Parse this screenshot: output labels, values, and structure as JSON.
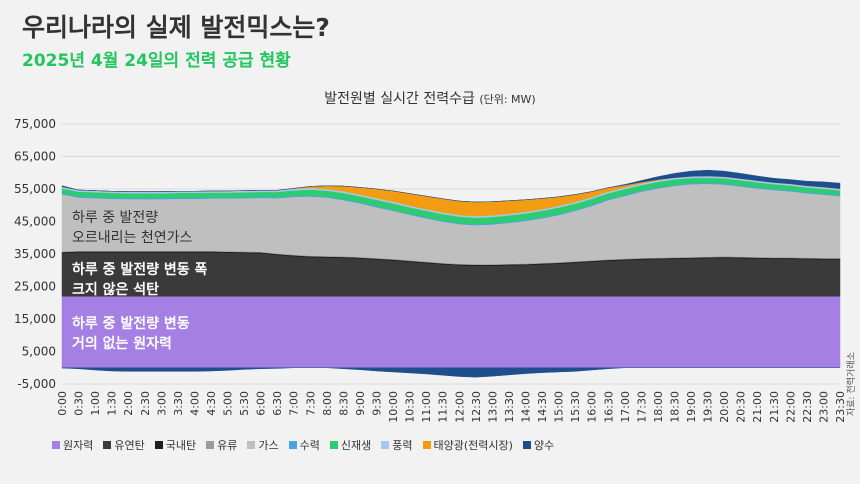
{
  "header": {
    "title": "우리나라의 실제 발전믹스는?",
    "subtitle": "2025년 4월 24일의 전력 공급 현황"
  },
  "chart_title": "발전원별 실시간 전력수급",
  "chart_unit": "(단위: MW)",
  "source": "자료: 전력거래소",
  "annotations": [
    {
      "lines": [
        "하루 중 발전량",
        "오르내리는 천연가스"
      ]
    },
    {
      "lines": [
        "하루 중 발전량 변동 폭",
        "크지 않은 석탄"
      ]
    },
    {
      "lines": [
        "하루 중 발전량 변동",
        "거의 없는 원자력"
      ]
    }
  ],
  "chart_data": {
    "type": "area",
    "stacked": true,
    "ylim": [
      -5000,
      75000
    ],
    "yticks": [
      -5000,
      5000,
      15000,
      25000,
      35000,
      45000,
      55000,
      65000,
      75000
    ],
    "ytick_labels": [
      "-5,000",
      "5,000",
      "15,000",
      "25,000",
      "35,000",
      "45,000",
      "55,000",
      "65,000",
      "75,000"
    ],
    "x": [
      "0:00",
      "0:30",
      "1:00",
      "1:30",
      "2:00",
      "2:30",
      "3:00",
      "3:30",
      "4:00",
      "4:30",
      "5:00",
      "5:30",
      "6:00",
      "6:30",
      "7:00",
      "7:30",
      "8:00",
      "8:30",
      "9:00",
      "9:30",
      "10:00",
      "10:30",
      "11:00",
      "11:30",
      "12:00",
      "12:30",
      "13:00",
      "13:30",
      "14:00",
      "14:30",
      "15:00",
      "15:30",
      "16:00",
      "16:30",
      "17:00",
      "17:30",
      "18:00",
      "18:30",
      "19:00",
      "19:30",
      "20:00",
      "20:30",
      "21:00",
      "21:30",
      "22:00",
      "22:30",
      "23:00",
      "23:30"
    ],
    "grid": true,
    "legend_position": "bottom",
    "series": [
      {
        "name": "원자력",
        "color": "#a57fe3",
        "values": [
          22000,
          22000,
          22000,
          22000,
          22000,
          22000,
          22000,
          22000,
          22000,
          22000,
          22000,
          22000,
          22000,
          22000,
          22000,
          22000,
          22000,
          22000,
          22000,
          22000,
          22000,
          22000,
          22000,
          22000,
          22000,
          22000,
          22000,
          22000,
          22000,
          22000,
          22000,
          22000,
          22000,
          22000,
          22000,
          22000,
          22000,
          22000,
          22000,
          22000,
          22000,
          22000,
          22000,
          22000,
          22000,
          22000,
          22000,
          22000
        ]
      },
      {
        "name": "유연탄",
        "color": "#3a3a3a",
        "values": [
          13300,
          13500,
          13500,
          13500,
          13500,
          13500,
          13500,
          13500,
          13500,
          13500,
          13400,
          13300,
          13200,
          12700,
          12300,
          12000,
          11900,
          11800,
          11600,
          11300,
          11000,
          10600,
          10200,
          9800,
          9500,
          9400,
          9400,
          9500,
          9600,
          9800,
          10000,
          10300,
          10600,
          10900,
          11100,
          11300,
          11400,
          11500,
          11600,
          11700,
          11800,
          11700,
          11600,
          11500,
          11500,
          11400,
          11300,
          11300
        ]
      },
      {
        "name": "국내탄",
        "color": "#1f1f1f",
        "values": [
          300,
          300,
          300,
          300,
          300,
          300,
          300,
          300,
          300,
          300,
          300,
          300,
          300,
          300,
          300,
          300,
          300,
          300,
          300,
          300,
          300,
          300,
          300,
          300,
          300,
          300,
          300,
          300,
          300,
          300,
          300,
          300,
          300,
          300,
          300,
          300,
          300,
          300,
          300,
          300,
          300,
          300,
          300,
          300,
          300,
          300,
          300,
          300
        ]
      },
      {
        "name": "유류",
        "color": "#9b9b9b",
        "values": [
          200,
          200,
          200,
          200,
          200,
          200,
          200,
          200,
          200,
          200,
          200,
          200,
          200,
          200,
          200,
          200,
          200,
          200,
          200,
          200,
          200,
          200,
          200,
          200,
          200,
          200,
          200,
          200,
          200,
          200,
          200,
          200,
          200,
          200,
          200,
          200,
          200,
          200,
          200,
          200,
          200,
          200,
          200,
          200,
          200,
          200,
          200,
          200
        ]
      },
      {
        "name": "가스",
        "color": "#bfbfbf",
        "values": [
          17600,
          16400,
          16200,
          16000,
          15900,
          15900,
          15900,
          16000,
          16000,
          16100,
          16200,
          16400,
          16600,
          17000,
          17800,
          18200,
          18000,
          17300,
          16500,
          15600,
          14800,
          14000,
          13300,
          12700,
          12200,
          12000,
          12200,
          12600,
          13100,
          13700,
          14500,
          15500,
          16700,
          18200,
          19300,
          20400,
          21300,
          22000,
          22400,
          22400,
          22100,
          21600,
          21100,
          20700,
          20300,
          19800,
          19500,
          19000
        ]
      },
      {
        "name": "수력",
        "color": "#4aa3df",
        "values": [
          300,
          300,
          300,
          300,
          300,
          300,
          300,
          300,
          300,
          300,
          300,
          300,
          300,
          300,
          300,
          300,
          300,
          300,
          300,
          300,
          300,
          300,
          300,
          300,
          300,
          300,
          300,
          300,
          300,
          300,
          300,
          300,
          300,
          300,
          300,
          300,
          300,
          300,
          300,
          300,
          300,
          300,
          300,
          300,
          300,
          300,
          300,
          300
        ]
      },
      {
        "name": "신재생",
        "color": "#2ecc71",
        "values": [
          1500,
          1500,
          1500,
          1500,
          1500,
          1500,
          1500,
          1500,
          1500,
          1500,
          1500,
          1500,
          1500,
          1600,
          1700,
          1800,
          1800,
          1900,
          1900,
          2000,
          2000,
          2000,
          2000,
          2000,
          2000,
          2000,
          2000,
          2000,
          2000,
          2000,
          2000,
          1900,
          1900,
          1800,
          1800,
          1700,
          1700,
          1700,
          1600,
          1600,
          1600,
          1600,
          1600,
          1500,
          1500,
          1500,
          1500,
          1500
        ]
      },
      {
        "name": "풍력",
        "color": "#a7c7ee",
        "values": [
          500,
          500,
          500,
          500,
          500,
          500,
          500,
          500,
          500,
          500,
          500,
          500,
          500,
          500,
          500,
          500,
          500,
          500,
          500,
          500,
          500,
          500,
          500,
          500,
          500,
          500,
          500,
          500,
          500,
          500,
          500,
          500,
          500,
          500,
          500,
          500,
          500,
          500,
          500,
          500,
          500,
          500,
          500,
          500,
          500,
          500,
          500,
          500
        ]
      },
      {
        "name": "태양광(전력시장)",
        "color": "#f39c12",
        "values": [
          0,
          0,
          0,
          0,
          0,
          0,
          0,
          0,
          0,
          0,
          0,
          0,
          0,
          0,
          100,
          500,
          1000,
          1600,
          2200,
          2800,
          3300,
          3700,
          4000,
          4200,
          4300,
          4300,
          4200,
          4000,
          3700,
          3300,
          2800,
          2300,
          1700,
          1200,
          700,
          400,
          200,
          0,
          0,
          0,
          0,
          0,
          0,
          0,
          0,
          0,
          0,
          0
        ]
      },
      {
        "name": "양수",
        "color": "#1f4e8c",
        "values": [
          300,
          0,
          0,
          0,
          0,
          0,
          0,
          0,
          0,
          0,
          0,
          0,
          0,
          0,
          0,
          0,
          0,
          0,
          0,
          0,
          0,
          0,
          0,
          0,
          0,
          0,
          0,
          0,
          0,
          0,
          0,
          0,
          0,
          0,
          200,
          500,
          900,
          1300,
          1600,
          1800,
          1700,
          1600,
          1400,
          1300,
          1300,
          1400,
          1600,
          1700
        ]
      }
    ],
    "negative_series": {
      "name": "양수",
      "color": "#1f4e8c",
      "values": [
        -100,
        -300,
        -700,
        -1000,
        -1100,
        -1100,
        -1100,
        -1100,
        -1100,
        -1000,
        -800,
        -500,
        -300,
        -200,
        0,
        0,
        0,
        -300,
        -600,
        -1000,
        -1300,
        -1600,
        -1900,
        -2300,
        -2700,
        -2900,
        -2600,
        -2200,
        -1800,
        -1500,
        -1300,
        -1100,
        -700,
        -300,
        0,
        0,
        0,
        0,
        0,
        0,
        0,
        0,
        0,
        0,
        0,
        0,
        0,
        0
      ]
    }
  }
}
